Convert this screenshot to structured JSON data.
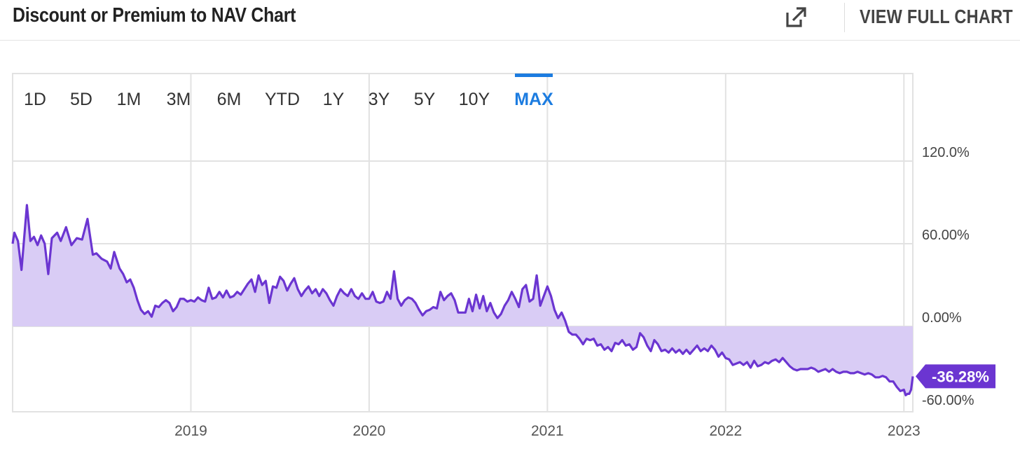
{
  "header": {
    "title": "Discount or Premium to NAV Chart",
    "full_chart_label": "VIEW FULL CHART",
    "icon": "external-link-icon"
  },
  "range_tabs": [
    {
      "label": "1D",
      "active": false
    },
    {
      "label": "5D",
      "active": false
    },
    {
      "label": "1M",
      "active": false
    },
    {
      "label": "3M",
      "active": false
    },
    {
      "label": "6M",
      "active": false
    },
    {
      "label": "YTD",
      "active": false
    },
    {
      "label": "1Y",
      "active": false
    },
    {
      "label": "3Y",
      "active": false
    },
    {
      "label": "5Y",
      "active": false
    },
    {
      "label": "10Y",
      "active": false
    },
    {
      "label": "MAX",
      "active": true
    }
  ],
  "colors": {
    "line": "#6b35d1",
    "fill": "#d9ccf5",
    "badge": "#6b35d1",
    "active_tab": "#1c7ce0",
    "grid": "#e2e2e2"
  },
  "chart_data": {
    "type": "area",
    "title": "Discount or Premium to NAV Chart",
    "xlabel": "",
    "ylabel": "",
    "x_range": [
      2018.0,
      2023.05
    ],
    "ylim": [
      -60,
      130
    ],
    "x_ticks": [
      {
        "value": 2019,
        "label": "2019"
      },
      {
        "value": 2020,
        "label": "2020"
      },
      {
        "value": 2021,
        "label": "2021"
      },
      {
        "value": 2022,
        "label": "2022"
      },
      {
        "value": 2023,
        "label": "2023"
      }
    ],
    "y_ticks": [
      {
        "value": 120,
        "label": "120.0%"
      },
      {
        "value": 60,
        "label": "60.00%"
      },
      {
        "value": 0,
        "label": "0.00%"
      },
      {
        "value": -60,
        "label": "-60.00%"
      }
    ],
    "grid": true,
    "last_value_label": "-36.28%",
    "series": [
      {
        "values": [
          [
            2018.0,
            60
          ],
          [
            2018.01,
            68
          ],
          [
            2018.03,
            62
          ],
          [
            2018.05,
            41
          ],
          [
            2018.08,
            88
          ],
          [
            2018.1,
            62
          ],
          [
            2018.12,
            65
          ],
          [
            2018.14,
            59
          ],
          [
            2018.16,
            66
          ],
          [
            2018.18,
            60
          ],
          [
            2018.2,
            38
          ],
          [
            2018.22,
            64
          ],
          [
            2018.25,
            68
          ],
          [
            2018.27,
            62
          ],
          [
            2018.3,
            72
          ],
          [
            2018.33,
            59
          ],
          [
            2018.36,
            64
          ],
          [
            2018.39,
            63
          ],
          [
            2018.42,
            78
          ],
          [
            2018.45,
            52
          ],
          [
            2018.47,
            53
          ],
          [
            2018.5,
            49
          ],
          [
            2018.53,
            47
          ],
          [
            2018.55,
            42
          ],
          [
            2018.57,
            54
          ],
          [
            2018.6,
            42
          ],
          [
            2018.62,
            38
          ],
          [
            2018.64,
            32
          ],
          [
            2018.66,
            34
          ],
          [
            2018.68,
            28
          ],
          [
            2018.7,
            19
          ],
          [
            2018.72,
            12
          ],
          [
            2018.74,
            9
          ],
          [
            2018.76,
            11
          ],
          [
            2018.78,
            7
          ],
          [
            2018.8,
            15
          ],
          [
            2018.82,
            14
          ],
          [
            2018.84,
            17
          ],
          [
            2018.86,
            19
          ],
          [
            2018.88,
            17
          ],
          [
            2018.9,
            11
          ],
          [
            2018.92,
            14
          ],
          [
            2018.94,
            20
          ],
          [
            2018.96,
            20
          ],
          [
            2018.98,
            18
          ],
          [
            2019.0,
            19
          ],
          [
            2019.02,
            18
          ],
          [
            2019.04,
            21
          ],
          [
            2019.06,
            19
          ],
          [
            2019.08,
            18
          ],
          [
            2019.1,
            28
          ],
          [
            2019.12,
            20
          ],
          [
            2019.14,
            21
          ],
          [
            2019.16,
            25
          ],
          [
            2019.18,
            21
          ],
          [
            2019.2,
            26
          ],
          [
            2019.22,
            21
          ],
          [
            2019.24,
            22
          ],
          [
            2019.26,
            25
          ],
          [
            2019.28,
            23
          ],
          [
            2019.3,
            27
          ],
          [
            2019.32,
            31
          ],
          [
            2019.34,
            34
          ],
          [
            2019.36,
            25
          ],
          [
            2019.38,
            37
          ],
          [
            2019.4,
            30
          ],
          [
            2019.42,
            33
          ],
          [
            2019.44,
            17
          ],
          [
            2019.46,
            29
          ],
          [
            2019.48,
            28
          ],
          [
            2019.5,
            36
          ],
          [
            2019.52,
            33
          ],
          [
            2019.54,
            26
          ],
          [
            2019.56,
            31
          ],
          [
            2019.58,
            35
          ],
          [
            2019.6,
            27
          ],
          [
            2019.62,
            22
          ],
          [
            2019.64,
            26
          ],
          [
            2019.66,
            29
          ],
          [
            2019.68,
            24
          ],
          [
            2019.7,
            27
          ],
          [
            2019.72,
            22
          ],
          [
            2019.74,
            27
          ],
          [
            2019.76,
            24
          ],
          [
            2019.78,
            19
          ],
          [
            2019.8,
            15
          ],
          [
            2019.82,
            22
          ],
          [
            2019.84,
            27
          ],
          [
            2019.86,
            24
          ],
          [
            2019.88,
            22
          ],
          [
            2019.9,
            27
          ],
          [
            2019.92,
            22
          ],
          [
            2019.94,
            20
          ],
          [
            2019.96,
            24
          ],
          [
            2019.98,
            20
          ],
          [
            2020.0,
            20
          ],
          [
            2020.02,
            25
          ],
          [
            2020.04,
            18
          ],
          [
            2020.06,
            17
          ],
          [
            2020.08,
            18
          ],
          [
            2020.1,
            25
          ],
          [
            2020.12,
            20
          ],
          [
            2020.14,
            40
          ],
          [
            2020.16,
            20
          ],
          [
            2020.18,
            15
          ],
          [
            2020.2,
            19
          ],
          [
            2020.22,
            21
          ],
          [
            2020.24,
            20
          ],
          [
            2020.26,
            17
          ],
          [
            2020.28,
            12
          ],
          [
            2020.3,
            8
          ],
          [
            2020.32,
            11
          ],
          [
            2020.34,
            12
          ],
          [
            2020.36,
            14
          ],
          [
            2020.38,
            13
          ],
          [
            2020.4,
            25
          ],
          [
            2020.42,
            19
          ],
          [
            2020.44,
            22
          ],
          [
            2020.46,
            24
          ],
          [
            2020.48,
            19
          ],
          [
            2020.5,
            10
          ],
          [
            2020.52,
            10
          ],
          [
            2020.54,
            10
          ],
          [
            2020.56,
            20
          ],
          [
            2020.58,
            11
          ],
          [
            2020.6,
            23
          ],
          [
            2020.62,
            13
          ],
          [
            2020.64,
            22
          ],
          [
            2020.66,
            11
          ],
          [
            2020.68,
            17
          ],
          [
            2020.7,
            10
          ],
          [
            2020.72,
            6
          ],
          [
            2020.74,
            9
          ],
          [
            2020.76,
            15
          ],
          [
            2020.78,
            19
          ],
          [
            2020.8,
            25
          ],
          [
            2020.82,
            20
          ],
          [
            2020.84,
            14
          ],
          [
            2020.86,
            27
          ],
          [
            2020.88,
            30
          ],
          [
            2020.9,
            18
          ],
          [
            2020.92,
            20
          ],
          [
            2020.94,
            37
          ],
          [
            2020.96,
            15
          ],
          [
            2020.98,
            22
          ],
          [
            2021.0,
            29
          ],
          [
            2021.02,
            22
          ],
          [
            2021.04,
            12
          ],
          [
            2021.06,
            6
          ],
          [
            2021.08,
            10
          ],
          [
            2021.1,
            4
          ],
          [
            2021.12,
            -4
          ],
          [
            2021.14,
            -6
          ],
          [
            2021.16,
            -6
          ],
          [
            2021.18,
            -9
          ],
          [
            2021.2,
            -13
          ],
          [
            2021.22,
            -9
          ],
          [
            2021.24,
            -10
          ],
          [
            2021.26,
            -9
          ],
          [
            2021.28,
            -14
          ],
          [
            2021.3,
            -13
          ],
          [
            2021.32,
            -17
          ],
          [
            2021.34,
            -15
          ],
          [
            2021.36,
            -18
          ],
          [
            2021.38,
            -12
          ],
          [
            2021.4,
            -13
          ],
          [
            2021.42,
            -10
          ],
          [
            2021.44,
            -14
          ],
          [
            2021.46,
            -13
          ],
          [
            2021.48,
            -17
          ],
          [
            2021.5,
            -15
          ],
          [
            2021.52,
            -5
          ],
          [
            2021.54,
            -8
          ],
          [
            2021.56,
            -14
          ],
          [
            2021.58,
            -18
          ],
          [
            2021.6,
            -10
          ],
          [
            2021.62,
            -13
          ],
          [
            2021.64,
            -18
          ],
          [
            2021.66,
            -17
          ],
          [
            2021.68,
            -19
          ],
          [
            2021.7,
            -16
          ],
          [
            2021.72,
            -19
          ],
          [
            2021.74,
            -17
          ],
          [
            2021.76,
            -20
          ],
          [
            2021.78,
            -17
          ],
          [
            2021.8,
            -20
          ],
          [
            2021.82,
            -17
          ],
          [
            2021.84,
            -14
          ],
          [
            2021.86,
            -18
          ],
          [
            2021.88,
            -16
          ],
          [
            2021.9,
            -18
          ],
          [
            2021.92,
            -14
          ],
          [
            2021.94,
            -17
          ],
          [
            2021.96,
            -22
          ],
          [
            2021.98,
            -19
          ],
          [
            2022.0,
            -23
          ],
          [
            2022.02,
            -24
          ],
          [
            2022.04,
            -28
          ],
          [
            2022.06,
            -27
          ],
          [
            2022.08,
            -26
          ],
          [
            2022.1,
            -28
          ],
          [
            2022.12,
            -26
          ],
          [
            2022.14,
            -30
          ],
          [
            2022.16,
            -25
          ],
          [
            2022.18,
            -29
          ],
          [
            2022.2,
            -28
          ],
          [
            2022.22,
            -26
          ],
          [
            2022.24,
            -27
          ],
          [
            2022.26,
            -25
          ],
          [
            2022.28,
            -24
          ],
          [
            2022.3,
            -26
          ],
          [
            2022.32,
            -23
          ],
          [
            2022.34,
            -26
          ],
          [
            2022.36,
            -29
          ],
          [
            2022.38,
            -31
          ],
          [
            2022.4,
            -32
          ],
          [
            2022.42,
            -31
          ],
          [
            2022.44,
            -31
          ],
          [
            2022.46,
            -31
          ],
          [
            2022.48,
            -30
          ],
          [
            2022.5,
            -31
          ],
          [
            2022.52,
            -33
          ],
          [
            2022.54,
            -32
          ],
          [
            2022.56,
            -31
          ],
          [
            2022.58,
            -33
          ],
          [
            2022.6,
            -31
          ],
          [
            2022.62,
            -33
          ],
          [
            2022.64,
            -34
          ],
          [
            2022.66,
            -33
          ],
          [
            2022.68,
            -33
          ],
          [
            2022.7,
            -34
          ],
          [
            2022.72,
            -34
          ],
          [
            2022.74,
            -33
          ],
          [
            2022.76,
            -34
          ],
          [
            2022.78,
            -35
          ],
          [
            2022.8,
            -34
          ],
          [
            2022.82,
            -35
          ],
          [
            2022.84,
            -37
          ],
          [
            2022.86,
            -37
          ],
          [
            2022.88,
            -36
          ],
          [
            2022.9,
            -37
          ],
          [
            2022.92,
            -40
          ],
          [
            2022.94,
            -40
          ],
          [
            2022.96,
            -44
          ],
          [
            2022.98,
            -47
          ],
          [
            2023.0,
            -46
          ],
          [
            2023.01,
            -50
          ],
          [
            2023.02,
            -49
          ],
          [
            2023.03,
            -49
          ],
          [
            2023.04,
            -46
          ],
          [
            2023.05,
            -36.28
          ]
        ]
      }
    ]
  }
}
